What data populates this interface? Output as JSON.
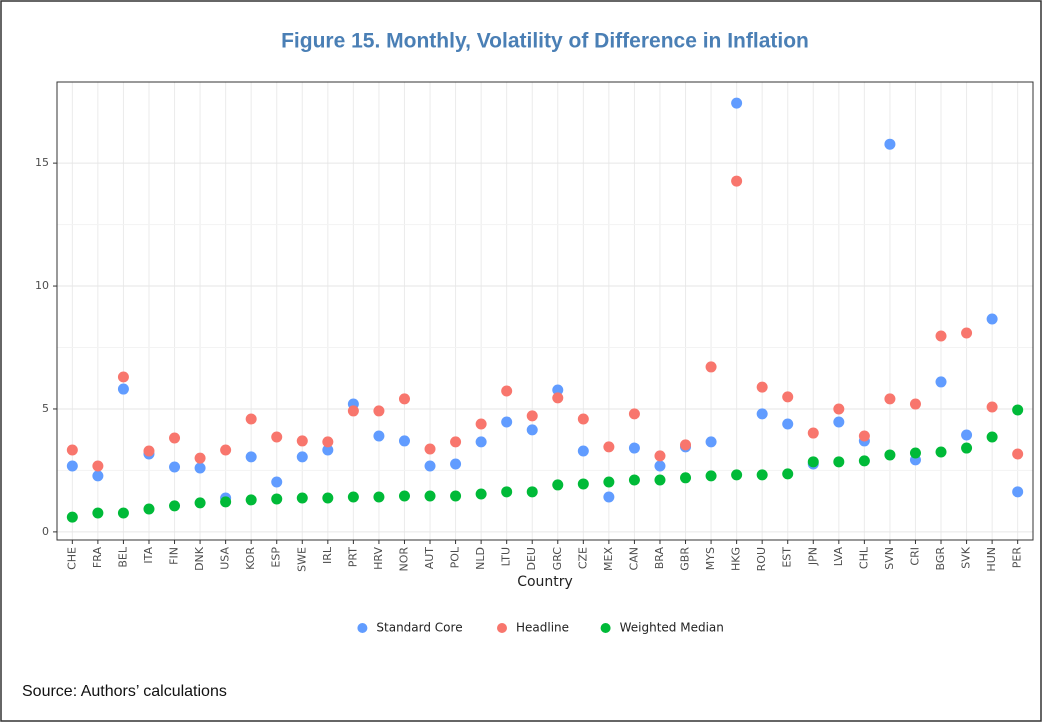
{
  "chart_data": {
    "type": "scatter",
    "title": "Figure 15. Monthly, Volatility of Difference in Inflation",
    "x_label": "Country",
    "source": "Source: Authors’ calculations",
    "categories": [
      "CHE",
      "FRA",
      "BEL",
      "ITA",
      "FIN",
      "DNK",
      "USA",
      "KOR",
      "ESP",
      "SWE",
      "IRL",
      "PRT",
      "HRV",
      "NOR",
      "AUT",
      "POL",
      "NLD",
      "LTU",
      "DEU",
      "GRC",
      "CZE",
      "MEX",
      "CAN",
      "BRA",
      "GBR",
      "MYS",
      "HKG",
      "ROU",
      "EST",
      "JPN",
      "LVA",
      "CHL",
      "SVN",
      "CRI",
      "BGR",
      "SVK",
      "HUN",
      "PER"
    ],
    "series": [
      {
        "name": "Standard Core",
        "color": "#619CFF",
        "values": [
          2.68,
          2.28,
          5.81,
          3.17,
          2.64,
          2.6,
          1.38,
          3.05,
          2.03,
          3.05,
          3.33,
          5.2,
          3.9,
          3.7,
          2.68,
          2.76,
          3.66,
          4.47,
          4.15,
          5.77,
          3.29,
          1.42,
          3.41,
          2.68,
          3.46,
          3.66,
          17.44,
          4.8,
          4.39,
          2.76,
          4.47,
          3.7,
          15.77,
          2.93,
          6.1,
          3.94,
          8.66,
          1.63
        ]
      },
      {
        "name": "Headline",
        "color": "#F8766D",
        "values": [
          3.33,
          2.68,
          6.3,
          3.29,
          3.82,
          3.0,
          3.33,
          4.59,
          3.86,
          3.7,
          3.66,
          4.92,
          4.92,
          5.41,
          3.37,
          3.66,
          4.39,
          5.73,
          4.72,
          5.45,
          4.59,
          3.46,
          4.8,
          3.09,
          3.54,
          6.71,
          14.27,
          5.89,
          5.49,
          4.02,
          5.0,
          3.9,
          5.41,
          5.2,
          7.97,
          8.09,
          5.08,
          3.17
        ]
      },
      {
        "name": "Weighted Median",
        "color": "#00BA38",
        "values": [
          0.6,
          0.77,
          0.77,
          0.93,
          1.06,
          1.18,
          1.22,
          1.3,
          1.34,
          1.38,
          1.38,
          1.42,
          1.42,
          1.46,
          1.46,
          1.46,
          1.54,
          1.63,
          1.63,
          1.91,
          1.95,
          2.03,
          2.11,
          2.11,
          2.2,
          2.28,
          2.32,
          2.32,
          2.36,
          2.85,
          2.85,
          2.89,
          3.13,
          3.21,
          3.25,
          3.41,
          3.86,
          4.96
        ]
      }
    ],
    "ylim": [
      -0.33,
      18.3
    ],
    "yticks": [
      0,
      5,
      10,
      15
    ],
    "grid": true,
    "legend": "bottom"
  }
}
